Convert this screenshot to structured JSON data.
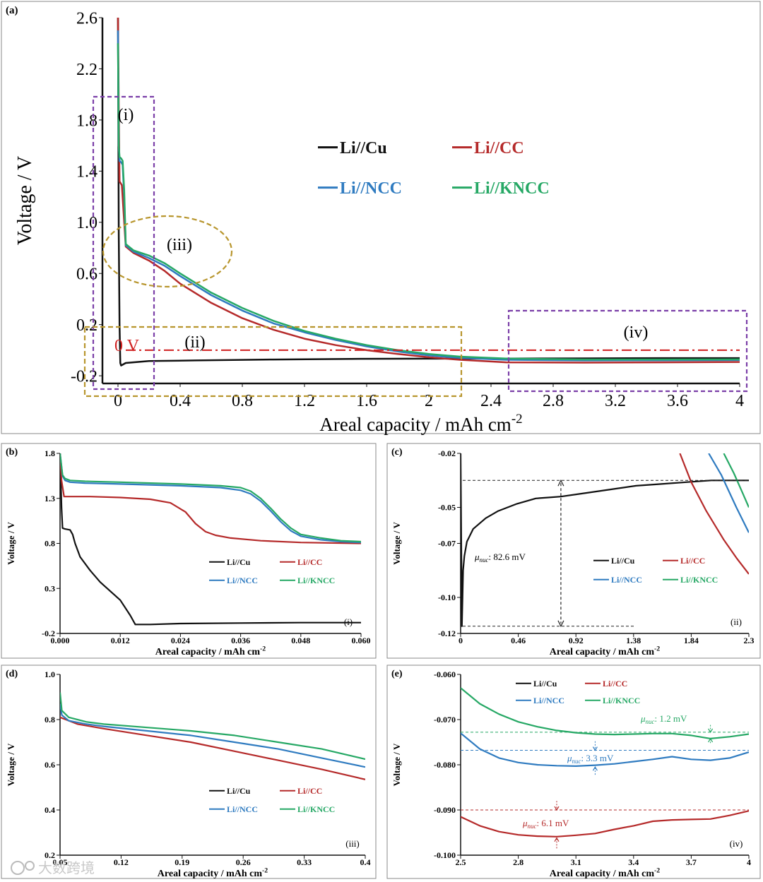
{
  "colors": {
    "cu": "#111111",
    "cc": "#b52a2a",
    "ncc": "#2f7bc0",
    "kncc": "#26a865",
    "purple": "#7b3fa8",
    "gold": "#b8962e",
    "zero": "#d02020"
  },
  "series_names": [
    "Li//Cu",
    "Li//CC",
    "Li//NCC",
    "Li//KNCC"
  ],
  "watermark": "大数跨境",
  "chart_data": [
    {
      "id": "a",
      "type": "line",
      "panel_label": "(a)",
      "xlabel": "Areal capacity / mAh cm",
      "xlabel_sup": "-2",
      "ylabel": "Voltage / V",
      "xlim": [
        -0.1,
        4.0
      ],
      "ylim": [
        -0.26,
        2.6
      ],
      "xticks": [
        0,
        0.4,
        0.8,
        1.2,
        1.6,
        2,
        2.4,
        2.8,
        3.2,
        3.6,
        4
      ],
      "xtick_labels": [
        "0",
        "0.4",
        "0.8",
        "1.2",
        "1.6",
        "2",
        "2.4",
        "2.8",
        "3.2",
        "3.6",
        "4"
      ],
      "yticks": [
        -0.2,
        0.2,
        0.6,
        1.0,
        1.4,
        1.8,
        2.2,
        2.6
      ],
      "ytick_labels": [
        "-0.2",
        "0.2",
        "0.6",
        "1.0",
        "1.4",
        "1.8",
        "2.2",
        "2.6"
      ],
      "annotations": {
        "zero_line": "0 V",
        "region_i": "(i)",
        "region_ii": "(ii)",
        "region_iii": "(iii)",
        "region_iv": "(iv)"
      },
      "series": [
        {
          "name": "Li//Cu",
          "x": [
            0,
            0.005,
            0.01,
            0.015,
            0.02,
            0.05,
            0.2,
            0.5,
            1.0,
            1.5,
            2.0,
            2.5,
            3.0,
            3.5,
            4.0
          ],
          "y": [
            2.6,
            0.9,
            0.2,
            -0.1,
            -0.12,
            -0.1,
            -0.085,
            -0.08,
            -0.073,
            -0.068,
            -0.066,
            -0.065,
            -0.064,
            -0.062,
            -0.062
          ]
        },
        {
          "name": "Li//CC",
          "x": [
            0,
            0.005,
            0.01,
            0.015,
            0.025,
            0.04,
            0.05,
            0.1,
            0.2,
            0.3,
            0.4,
            0.6,
            0.8,
            1.0,
            1.2,
            1.4,
            1.6,
            1.8,
            2.0,
            2.2,
            2.5,
            3.0,
            3.5,
            4.0
          ],
          "y": [
            2.6,
            1.9,
            1.32,
            1.31,
            1.29,
            1.0,
            0.81,
            0.76,
            0.7,
            0.62,
            0.52,
            0.37,
            0.25,
            0.16,
            0.09,
            0.04,
            0.0,
            -0.03,
            -0.055,
            -0.075,
            -0.095,
            -0.097,
            -0.095,
            -0.092
          ]
        },
        {
          "name": "Li//NCC",
          "x": [
            0,
            0.005,
            0.01,
            0.02,
            0.03,
            0.04,
            0.05,
            0.1,
            0.2,
            0.3,
            0.4,
            0.6,
            0.8,
            1.0,
            1.2,
            1.4,
            1.6,
            1.8,
            2.0,
            2.2,
            2.5,
            3.0,
            3.5,
            4.0
          ],
          "y": [
            2.5,
            1.6,
            1.48,
            1.47,
            1.45,
            1.2,
            0.82,
            0.77,
            0.72,
            0.66,
            0.58,
            0.43,
            0.31,
            0.21,
            0.14,
            0.08,
            0.03,
            -0.01,
            -0.04,
            -0.06,
            -0.075,
            -0.08,
            -0.079,
            -0.077
          ]
        },
        {
          "name": "Li//KNCC",
          "x": [
            0,
            0.005,
            0.01,
            0.02,
            0.03,
            0.04,
            0.05,
            0.1,
            0.2,
            0.3,
            0.4,
            0.6,
            0.8,
            1.0,
            1.2,
            1.4,
            1.6,
            1.8,
            2.0,
            2.2,
            2.5,
            3.0,
            3.5,
            4.0
          ],
          "y": [
            2.4,
            1.6,
            1.51,
            1.5,
            1.48,
            1.25,
            0.83,
            0.78,
            0.74,
            0.68,
            0.6,
            0.45,
            0.33,
            0.23,
            0.15,
            0.09,
            0.04,
            0.0,
            -0.03,
            -0.05,
            -0.065,
            -0.073,
            -0.073,
            -0.072
          ]
        }
      ],
      "legend": [
        "Li//Cu",
        "Li//CC",
        "Li//NCC",
        "Li//KNCC"
      ]
    },
    {
      "id": "b",
      "type": "line",
      "panel_label": "(b)",
      "corner_label": "(i)",
      "xlabel": "Areal capacity / mAh cm",
      "xlabel_sup": "-2",
      "ylabel": "Voltage / V",
      "xlim": [
        0,
        0.06
      ],
      "ylim": [
        -0.2,
        1.8
      ],
      "xticks": [
        0,
        0.012,
        0.024,
        0.036,
        0.048,
        0.06
      ],
      "xtick_labels": [
        "0.000",
        "0.012",
        "0.024",
        "0.036",
        "0.048",
        "0.060"
      ],
      "yticks": [
        -0.2,
        0.3,
        0.8,
        1.3,
        1.8
      ],
      "ytick_labels": [
        "-0.2",
        "0.3",
        "0.8",
        "1.3",
        "1.8"
      ],
      "series": [
        {
          "name": "Li//Cu",
          "x": [
            0,
            0.0003,
            0.0005,
            0.001,
            0.002,
            0.0025,
            0.003,
            0.004,
            0.006,
            0.008,
            0.01,
            0.012,
            0.014,
            0.015,
            0.016,
            0.018,
            0.024,
            0.036,
            0.048,
            0.06
          ],
          "y": [
            1.8,
            1.2,
            0.97,
            0.96,
            0.95,
            0.9,
            0.8,
            0.65,
            0.5,
            0.37,
            0.27,
            0.17,
            0.0,
            -0.1,
            -0.1,
            -0.1,
            -0.09,
            -0.085,
            -0.08,
            -0.08
          ]
        },
        {
          "name": "Li//CC",
          "x": [
            0,
            0.0003,
            0.0008,
            0.002,
            0.006,
            0.012,
            0.018,
            0.022,
            0.025,
            0.027,
            0.029,
            0.031,
            0.034,
            0.04,
            0.048,
            0.06
          ],
          "y": [
            1.8,
            1.5,
            1.32,
            1.32,
            1.32,
            1.31,
            1.29,
            1.25,
            1.15,
            1.02,
            0.93,
            0.89,
            0.86,
            0.83,
            0.81,
            0.8
          ]
        },
        {
          "name": "Li//NCC",
          "x": [
            0,
            0.0005,
            0.001,
            0.002,
            0.005,
            0.012,
            0.024,
            0.032,
            0.036,
            0.038,
            0.04,
            0.042,
            0.044,
            0.046,
            0.048,
            0.052,
            0.056,
            0.06
          ],
          "y": [
            1.8,
            1.55,
            1.5,
            1.48,
            1.47,
            1.46,
            1.44,
            1.42,
            1.39,
            1.35,
            1.27,
            1.16,
            1.04,
            0.94,
            0.88,
            0.84,
            0.82,
            0.81
          ]
        },
        {
          "name": "Li//KNCC",
          "x": [
            0,
            0.0005,
            0.001,
            0.002,
            0.005,
            0.012,
            0.024,
            0.032,
            0.036,
            0.038,
            0.04,
            0.042,
            0.044,
            0.046,
            0.048,
            0.052,
            0.056,
            0.06
          ],
          "y": [
            1.8,
            1.56,
            1.52,
            1.5,
            1.49,
            1.48,
            1.46,
            1.44,
            1.42,
            1.38,
            1.3,
            1.19,
            1.07,
            0.97,
            0.9,
            0.86,
            0.83,
            0.82
          ]
        }
      ],
      "legend": [
        "Li//Cu",
        "Li//CC",
        "Li//NCC",
        "Li//KNCC"
      ]
    },
    {
      "id": "c",
      "type": "line",
      "panel_label": "(c)",
      "corner_label": "(ii)",
      "xlabel": "Areal capacity / mAh cm",
      "xlabel_sup": "-2",
      "ylabel": "Voltage / V",
      "xlim": [
        0,
        2.3
      ],
      "ylim": [
        -0.12,
        -0.02
      ],
      "xticks": [
        0,
        0.46,
        0.92,
        1.38,
        1.84,
        2.3
      ],
      "xtick_labels": [
        "0",
        "0.46",
        "0.92",
        "1.38",
        "1.84",
        "2.3"
      ],
      "yticks": [
        -0.12,
        -0.1,
        -0.07,
        -0.05,
        -0.02
      ],
      "ytick_labels": [
        "-0.12",
        "-0.10",
        "-0.07",
        "-0.05",
        "-0.02"
      ],
      "annotation_prefix": "μ",
      "annotation_sub": "nuc",
      "annotation_value": ": 82.6 mV",
      "nucleation_mV": 82.6,
      "series": [
        {
          "name": "Li//Cu",
          "x": [
            0,
            0.01,
            0.015,
            0.02,
            0.03,
            0.05,
            0.1,
            0.2,
            0.3,
            0.45,
            0.6,
            0.7,
            0.8,
            1.0,
            1.2,
            1.4,
            1.6,
            1.8,
            2.0,
            2.2,
            2.3
          ],
          "y": [
            -0.02,
            -0.116,
            -0.1,
            -0.085,
            -0.077,
            -0.069,
            -0.062,
            -0.056,
            -0.052,
            -0.048,
            -0.045,
            -0.0445,
            -0.044,
            -0.042,
            -0.04,
            -0.038,
            -0.037,
            -0.036,
            -0.035,
            -0.035,
            -0.035
          ]
        },
        {
          "name": "Li//CC",
          "x": [
            1.75,
            1.84,
            1.96,
            2.1,
            2.2,
            2.3
          ],
          "y": [
            -0.02,
            -0.036,
            -0.052,
            -0.068,
            -0.078,
            -0.087
          ]
        },
        {
          "name": "Li//NCC",
          "x": [
            1.98,
            2.08,
            2.2,
            2.3
          ],
          "y": [
            -0.02,
            -0.032,
            -0.05,
            -0.064
          ]
        },
        {
          "name": "Li//KNCC",
          "x": [
            2.1,
            2.18,
            2.25,
            2.3
          ],
          "y": [
            -0.02,
            -0.031,
            -0.042,
            -0.05
          ]
        }
      ],
      "legend": [
        "Li//Cu",
        "Li//CC",
        "Li//NCC",
        "Li//KNCC"
      ]
    },
    {
      "id": "d",
      "type": "line",
      "panel_label": "(d)",
      "corner_label": "(iii)",
      "xlabel": "Areal capacity / mAh cm",
      "xlabel_sup": "-2",
      "ylabel": "Voltage / V",
      "xlim": [
        0.05,
        0.4
      ],
      "ylim": [
        0.2,
        1.0
      ],
      "xticks": [
        0.05,
        0.12,
        0.19,
        0.26,
        0.33,
        0.4
      ],
      "xtick_labels": [
        "0.05",
        "0.12",
        "0.19",
        "0.26",
        "0.33",
        "0.4"
      ],
      "yticks": [
        0.2,
        0.4,
        0.6,
        0.8,
        1.0
      ],
      "ytick_labels": [
        "0.2",
        "0.4",
        "0.6",
        "0.8",
        "1.0"
      ],
      "series": [
        {
          "name": "Li//Cu",
          "x": [],
          "y": []
        },
        {
          "name": "Li//CC",
          "x": [
            0.05,
            0.07,
            0.1,
            0.15,
            0.2,
            0.25,
            0.3,
            0.35,
            0.4
          ],
          "y": [
            0.81,
            0.78,
            0.76,
            0.73,
            0.7,
            0.66,
            0.62,
            0.58,
            0.535
          ]
        },
        {
          "name": "Li//NCC",
          "x": [
            0.05,
            0.052,
            0.06,
            0.08,
            0.1,
            0.15,
            0.2,
            0.25,
            0.3,
            0.35,
            0.4
          ],
          "y": [
            0.87,
            0.82,
            0.795,
            0.78,
            0.77,
            0.75,
            0.73,
            0.7,
            0.67,
            0.63,
            0.59
          ]
        },
        {
          "name": "Li//KNCC",
          "x": [
            0.05,
            0.052,
            0.06,
            0.08,
            0.1,
            0.15,
            0.2,
            0.25,
            0.3,
            0.35,
            0.4
          ],
          "y": [
            0.92,
            0.84,
            0.81,
            0.79,
            0.78,
            0.765,
            0.75,
            0.73,
            0.7,
            0.67,
            0.625
          ]
        }
      ],
      "legend": [
        "Li//Cu",
        "Li//CC",
        "Li//NCC",
        "Li//KNCC"
      ]
    },
    {
      "id": "e",
      "type": "line",
      "panel_label": "(e)",
      "corner_label": "(iv)",
      "xlabel": "Areal capacity / mAh cm",
      "xlabel_sup": "-2",
      "ylabel": "Voltage / V",
      "xlim": [
        2.5,
        4.0
      ],
      "ylim": [
        -0.1,
        -0.06
      ],
      "xticks": [
        2.5,
        2.8,
        3.1,
        3.4,
        3.7,
        4.0
      ],
      "xtick_labels": [
        "2.5",
        "2.8",
        "3.1",
        "3.4",
        "3.7",
        "4"
      ],
      "yticks": [
        -0.1,
        -0.09,
        -0.08,
        -0.07,
        -0.06
      ],
      "ytick_labels": [
        "-0.100",
        "-0.090",
        "-0.080",
        "-0.070",
        "-0.060"
      ],
      "annotation_prefix": "μ",
      "annotation_sub": "nuc",
      "annotations": [
        {
          "series": "Li//KNCC",
          "value": ": 1.2 mV",
          "mV": 1.2
        },
        {
          "series": "Li//NCC",
          "value": ": 3.3 mV",
          "mV": 3.3
        },
        {
          "series": "Li//CC",
          "value": ": 6.1 mV",
          "mV": 6.1
        }
      ],
      "series": [
        {
          "name": "Li//Cu",
          "x": [],
          "y": []
        },
        {
          "name": "Li//CC",
          "x": [
            2.5,
            2.6,
            2.7,
            2.8,
            2.9,
            3.0,
            3.1,
            3.2,
            3.3,
            3.4,
            3.5,
            3.6,
            3.7,
            3.8,
            3.9,
            4.0
          ],
          "y": [
            -0.0915,
            -0.0935,
            -0.0948,
            -0.0955,
            -0.0958,
            -0.0959,
            -0.0956,
            -0.0952,
            -0.0943,
            -0.0935,
            -0.0925,
            -0.0922,
            -0.0921,
            -0.092,
            -0.0912,
            -0.0902
          ]
        },
        {
          "name": "Li//NCC",
          "x": [
            2.5,
            2.6,
            2.7,
            2.8,
            2.9,
            3.0,
            3.1,
            3.2,
            3.3,
            3.4,
            3.5,
            3.6,
            3.7,
            3.8,
            3.9,
            4.0
          ],
          "y": [
            -0.073,
            -0.0765,
            -0.0785,
            -0.0795,
            -0.08,
            -0.0802,
            -0.0803,
            -0.0801,
            -0.0798,
            -0.0793,
            -0.0788,
            -0.0782,
            -0.0788,
            -0.079,
            -0.0785,
            -0.0772
          ]
        },
        {
          "name": "Li//KNCC",
          "x": [
            2.5,
            2.6,
            2.7,
            2.8,
            2.9,
            3.0,
            3.1,
            3.2,
            3.3,
            3.4,
            3.5,
            3.6,
            3.7,
            3.8,
            3.9,
            4.0
          ],
          "y": [
            -0.063,
            -0.0665,
            -0.0688,
            -0.0705,
            -0.0716,
            -0.0724,
            -0.0729,
            -0.0732,
            -0.0733,
            -0.0732,
            -0.0731,
            -0.0731,
            -0.0735,
            -0.0742,
            -0.0738,
            -0.0732
          ]
        }
      ],
      "legend": [
        "Li//Cu",
        "Li//CC",
        "Li//NCC",
        "Li//KNCC"
      ]
    }
  ]
}
